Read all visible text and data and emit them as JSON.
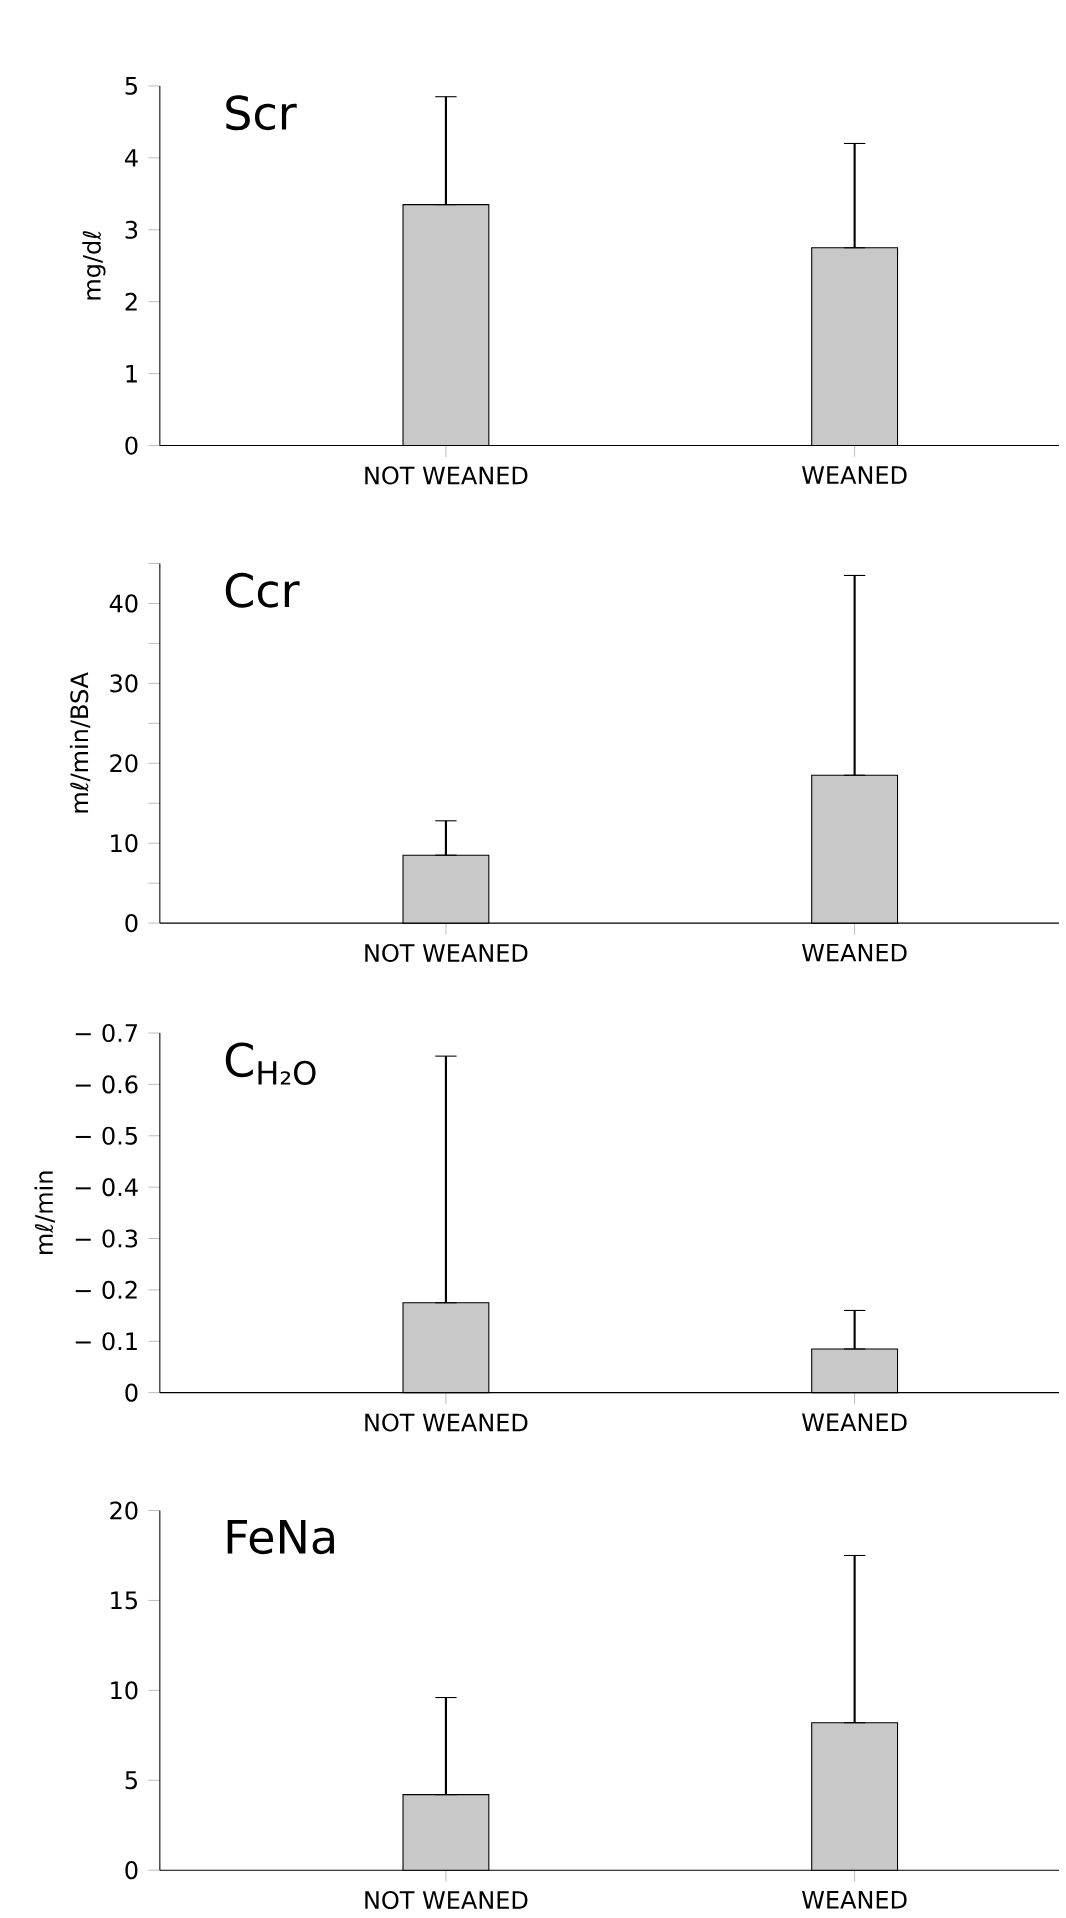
{
  "chart_data": [
    {
      "type": "bar",
      "title": "Scr",
      "ylabel": "mg/dℓ",
      "categories": [
        "NOT  WEANED",
        "WEANED"
      ],
      "values": [
        3.35,
        2.75
      ],
      "errors": [
        [
          3.35,
          4.85
        ],
        [
          2.75,
          4.2
        ]
      ],
      "color": "#c8c8c8",
      "ylim": [
        0,
        5
      ],
      "yticks": [
        0,
        1,
        2,
        3,
        4,
        5
      ]
    },
    {
      "type": "bar",
      "title": "Ccr",
      "ylabel": "mℓ/min/BSA",
      "categories": [
        "NOT  WEANED",
        "WEANED"
      ],
      "values": [
        8.5,
        18.5
      ],
      "errors": [
        [
          8.5,
          12.8
        ],
        [
          18.5,
          43.5
        ]
      ],
      "color": "#c8c8c8",
      "ylim": [
        0,
        45
      ],
      "yticks": [
        0,
        {
          "value": 5,
          "label": null
        },
        10,
        {
          "value": 15,
          "label": null
        },
        20,
        {
          "value": 25,
          "label": null
        },
        30,
        {
          "value": 35,
          "label": null
        },
        40,
        {
          "value": 45,
          "label": null
        }
      ]
    },
    {
      "type": "bar",
      "title": "C$_{H₂O}$",
      "ylabel": "mℓ/min",
      "categories": [
        "NOT  WEANED",
        "WEANED"
      ],
      "values": [
        -0.175,
        -0.085
      ],
      "errors": [
        [
          -0.655,
          -0.175
        ],
        [
          -0.16,
          -0.085
        ]
      ],
      "color": "#c8c8c8",
      "ylim": [
        0,
        -0.7
      ],
      "yticks": [
        0,
        {
          "value": -0.1,
          "label": "− 0.1"
        },
        {
          "value": -0.2,
          "label": "− 0.2"
        },
        {
          "value": -0.3,
          "label": "− 0.3"
        },
        {
          "value": -0.4,
          "label": "− 0.4"
        },
        {
          "value": -0.5,
          "label": "− 0.5"
        },
        {
          "value": -0.6,
          "label": "− 0.6"
        },
        {
          "value": -0.7,
          "label": "− 0.7"
        }
      ]
    },
    {
      "type": "bar",
      "title": "FeNa",
      "categories": [
        "NOT  WEANED",
        "WEANED"
      ],
      "values": [
        4.2,
        8.2
      ],
      "errors": [
        [
          4.2,
          9.6
        ],
        [
          8.2,
          17.5
        ]
      ],
      "color": "#c8c8c8",
      "ylim": [
        0,
        20
      ],
      "yticks": [
        0,
        5,
        10,
        15,
        20
      ]
    }
  ]
}
